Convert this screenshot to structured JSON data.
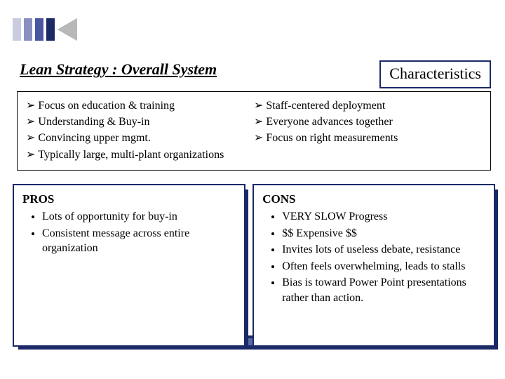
{
  "colors": {
    "accent_navy": "#1b2a66",
    "bar1": "#c9cbe0",
    "bar2": "#8890c2",
    "bar3": "#4a56a0",
    "bar4": "#1b2a66",
    "arrow_fill": "#b8b8b8",
    "arrow_stroke": "#6a6a6a",
    "bottom_strip": "#1b2a66"
  },
  "title": "Lean Strategy : Overall System",
  "characteristics_label": "Characteristics",
  "bullets_left": [
    "Focus on education & training",
    "Understanding & Buy-in",
    "Convincing upper mgmt.",
    "Typically large, multi-plant organizations"
  ],
  "bullets_right": [
    "Staff-centered deployment",
    "Everyone advances together",
    "Focus on right measurements"
  ],
  "bullet_glyph": "➢",
  "pros": {
    "title": "PROS",
    "items": [
      "Lots of opportunity for buy-in",
      "Consistent message across entire organization"
    ]
  },
  "cons": {
    "title": "CONS",
    "items": [
      "VERY SLOW Progress",
      "$$ Expensive $$",
      "Invites lots of useless debate, resistance",
      "Often feels overwhelming, leads to stalls",
      "Bias is toward Power Point presentations rather than action."
    ]
  }
}
